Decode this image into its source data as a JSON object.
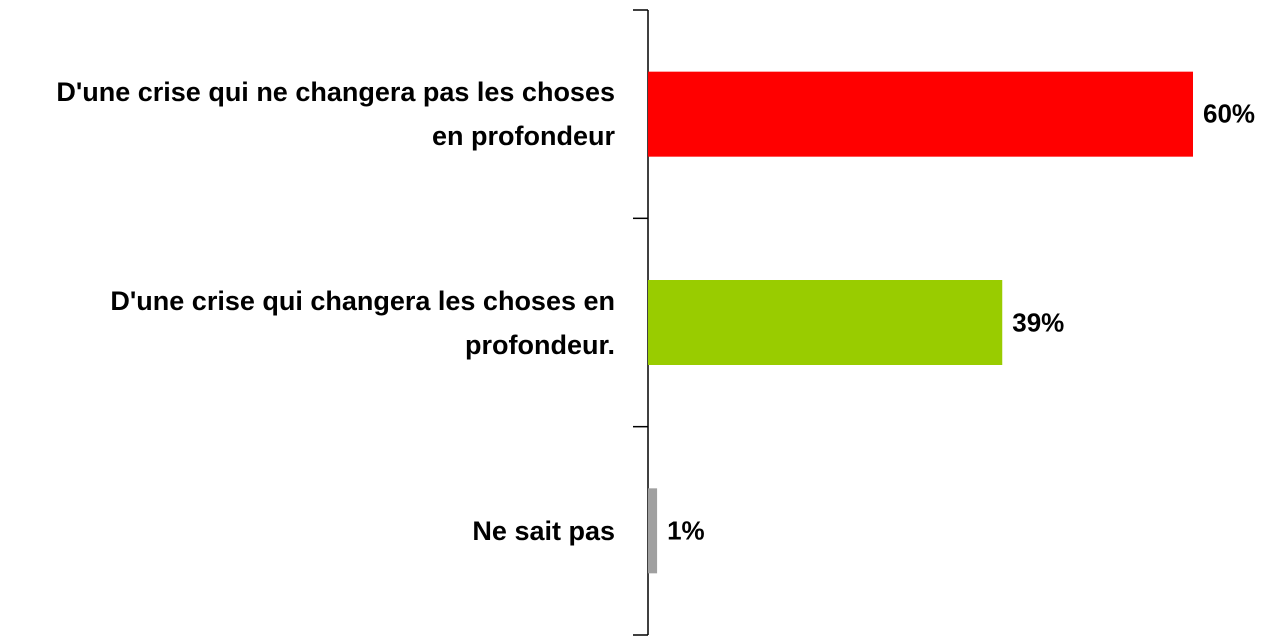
{
  "chart_data": {
    "type": "bar",
    "orientation": "horizontal",
    "categories": [
      "D'une crise qui ne changera pas les choses en profondeur",
      "D'une crise qui changera les choses en profondeur.",
      "Ne sait pas"
    ],
    "values": [
      60,
      39,
      1
    ],
    "value_labels": [
      "60%",
      "39%",
      "1%"
    ],
    "colors": [
      "#ff0000",
      "#99cc00",
      "#a0a0a0"
    ]
  }
}
